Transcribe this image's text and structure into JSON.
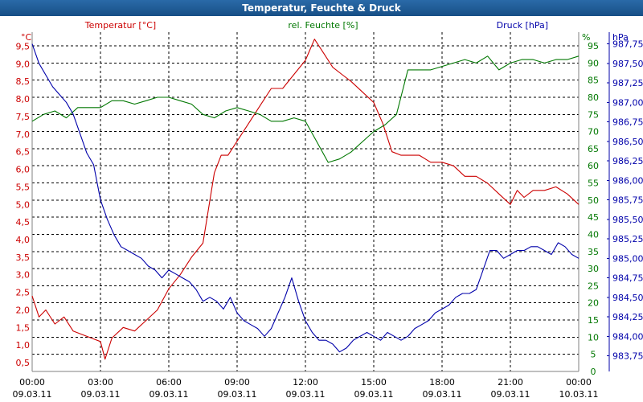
{
  "chart_data": {
    "type": "line",
    "title": "Temperatur, Feuchte & Druck",
    "colors": {
      "temperature": "#cc0000",
      "humidity": "#007700",
      "pressure": "#0000aa",
      "axis": "#000000",
      "grid": "#000000",
      "title_bar": "#1f5e9e"
    },
    "x_ticks": [
      {
        "time": "00:00",
        "date": "09.03.11"
      },
      {
        "time": "03:00",
        "date": "09.03.11"
      },
      {
        "time": "06:00",
        "date": "09.03.11"
      },
      {
        "time": "09:00",
        "date": "09.03.11"
      },
      {
        "time": "12:00",
        "date": "09.03.11"
      },
      {
        "time": "15:00",
        "date": "09.03.11"
      },
      {
        "time": "18:00",
        "date": "09.03.11"
      },
      {
        "time": "21:00",
        "date": "09.03.11"
      },
      {
        "time": "00:00",
        "date": "10.03.11"
      }
    ],
    "xlim": [
      0,
      24
    ],
    "axes": {
      "temperature": {
        "label": "Temperatur [°C]",
        "unit": "°C",
        "ylim": [
          0.25,
          9.9
        ],
        "ticks": [
          "0,5",
          "1,0",
          "1,5",
          "2,0",
          "2,5",
          "3,0",
          "3,5",
          "4,0",
          "4,5",
          "5,0",
          "5,5",
          "6,0",
          "6,5",
          "7,0",
          "7,5",
          "8,0",
          "8,5",
          "9,0",
          "9,5"
        ],
        "tick_values": [
          0.5,
          1.0,
          1.5,
          2.0,
          2.5,
          3.0,
          3.5,
          4.0,
          4.5,
          5.0,
          5.5,
          6.0,
          6.5,
          7.0,
          7.5,
          8.0,
          8.5,
          9.0,
          9.5
        ]
      },
      "humidity": {
        "label": "rel. Feuchte [%]",
        "unit": "%",
        "ylim": [
          0,
          99
        ],
        "ticks": [
          "0",
          "5",
          "10",
          "15",
          "20",
          "25",
          "30",
          "35",
          "40",
          "45",
          "50",
          "55",
          "60",
          "65",
          "70",
          "75",
          "80",
          "85",
          "90",
          "95"
        ],
        "tick_values": [
          0,
          5,
          10,
          15,
          20,
          25,
          30,
          35,
          40,
          45,
          50,
          55,
          60,
          65,
          70,
          75,
          80,
          85,
          90,
          95
        ]
      },
      "pressure": {
        "label": "Druck [hPa]",
        "unit": "hPa",
        "ylim": [
          983.55,
          987.9
        ],
        "ticks": [
          "983,75",
          "984,00",
          "984,25",
          "984,50",
          "984,75",
          "985,00",
          "985,25",
          "985,50",
          "985,75",
          "986,00",
          "986,25",
          "986,50",
          "986,75",
          "987,00",
          "987,25",
          "987,50",
          "987,75"
        ],
        "tick_values": [
          983.75,
          984.0,
          984.25,
          984.5,
          984.75,
          985.0,
          985.25,
          985.5,
          985.75,
          986.0,
          986.25,
          986.5,
          986.75,
          987.0,
          987.25,
          987.5,
          987.75
        ]
      }
    },
    "series": [
      {
        "name": "Temperatur [°C]",
        "axis": "temperature",
        "color": "#cc0000",
        "x": [
          0,
          0.3,
          0.6,
          1.0,
          1.4,
          1.8,
          2.2,
          2.6,
          3.0,
          3.2,
          3.5,
          4.0,
          4.5,
          5.0,
          5.5,
          6.0,
          6.5,
          7.0,
          7.5,
          8.0,
          8.3,
          8.6,
          9.0,
          9.5,
          10.0,
          10.5,
          11.0,
          11.5,
          12.0,
          12.4,
          12.8,
          13.2,
          13.6,
          14.0,
          14.5,
          15.0,
          15.4,
          15.8,
          16.2,
          16.6,
          17.0,
          17.5,
          18.0,
          18.5,
          19.0,
          19.5,
          20.0,
          20.5,
          21.0,
          21.3,
          21.6,
          22.0,
          22.5,
          23.0,
          23.5,
          24.0
        ],
        "values": [
          2.4,
          1.8,
          2.0,
          1.6,
          1.8,
          1.4,
          1.3,
          1.2,
          1.1,
          0.6,
          1.2,
          1.5,
          1.4,
          1.7,
          2.0,
          2.6,
          3.0,
          3.5,
          3.9,
          5.9,
          6.4,
          6.4,
          6.8,
          7.3,
          7.8,
          8.3,
          8.3,
          8.7,
          9.1,
          9.7,
          9.3,
          8.9,
          8.7,
          8.5,
          8.2,
          7.9,
          7.3,
          6.5,
          6.4,
          6.4,
          6.4,
          6.2,
          6.2,
          6.1,
          5.8,
          5.8,
          5.6,
          5.3,
          5.0,
          5.4,
          5.2,
          5.4,
          5.4,
          5.5,
          5.3,
          5.0
        ]
      },
      {
        "name": "rel. Feuchte [%]",
        "axis": "humidity",
        "color": "#007700",
        "x": [
          0,
          0.5,
          1.0,
          1.5,
          2.0,
          2.5,
          3.0,
          3.5,
          4.0,
          4.5,
          5.0,
          5.5,
          6.0,
          6.5,
          7.0,
          7.5,
          8.0,
          8.5,
          9.0,
          9.5,
          10.0,
          10.5,
          11.0,
          11.5,
          12.0,
          12.5,
          13.0,
          13.5,
          14.0,
          14.5,
          15.0,
          15.5,
          16.0,
          16.5,
          17.0,
          17.5,
          18.0,
          18.5,
          19.0,
          19.5,
          20.0,
          20.5,
          21.0,
          21.5,
          22.0,
          22.5,
          23.0,
          23.5,
          24.0
        ],
        "values": [
          73,
          75,
          76,
          74,
          77,
          77,
          77,
          79,
          79,
          78,
          79,
          80,
          80,
          79,
          78,
          75,
          74,
          76,
          77,
          76,
          75,
          73,
          73,
          74,
          73,
          67,
          61,
          62,
          64,
          67,
          70,
          72,
          75,
          88,
          88,
          88,
          89,
          90,
          91,
          90,
          92,
          88,
          90,
          91,
          91,
          90,
          91,
          91,
          92
        ]
      },
      {
        "name": "Druck [hPa]",
        "axis": "pressure",
        "color": "#0000aa",
        "x": [
          0,
          0.3,
          0.6,
          0.9,
          1.2,
          1.5,
          1.8,
          2.1,
          2.4,
          2.7,
          3.0,
          3.3,
          3.6,
          3.9,
          4.2,
          4.5,
          4.8,
          5.1,
          5.4,
          5.7,
          6.0,
          6.3,
          6.6,
          6.9,
          7.2,
          7.5,
          7.8,
          8.1,
          8.4,
          8.7,
          9.0,
          9.3,
          9.6,
          9.9,
          10.2,
          10.5,
          10.8,
          11.1,
          11.4,
          11.7,
          12.0,
          12.3,
          12.6,
          12.9,
          13.2,
          13.5,
          13.8,
          14.1,
          14.4,
          14.7,
          15.0,
          15.3,
          15.6,
          15.9,
          16.2,
          16.5,
          16.8,
          17.1,
          17.4,
          17.7,
          18.0,
          18.3,
          18.6,
          18.9,
          19.2,
          19.5,
          19.8,
          20.1,
          20.4,
          20.7,
          21.0,
          21.3,
          21.6,
          21.9,
          22.2,
          22.5,
          22.8,
          23.1,
          23.4,
          23.7,
          24.0
        ],
        "values": [
          987.75,
          987.5,
          987.35,
          987.2,
          987.1,
          987.0,
          986.85,
          986.6,
          986.35,
          986.2,
          985.75,
          985.5,
          985.3,
          985.15,
          985.1,
          985.05,
          985.0,
          984.9,
          984.85,
          984.75,
          984.85,
          984.8,
          984.75,
          984.7,
          984.6,
          984.45,
          984.5,
          984.45,
          984.35,
          984.5,
          984.3,
          984.2,
          984.15,
          984.1,
          984.0,
          984.1,
          984.3,
          984.5,
          984.75,
          984.45,
          984.2,
          984.05,
          983.95,
          983.95,
          983.9,
          983.8,
          983.85,
          983.95,
          984.0,
          984.05,
          984.0,
          983.95,
          984.05,
          984.0,
          983.95,
          984.0,
          984.1,
          984.15,
          984.2,
          984.3,
          984.35,
          984.4,
          984.5,
          984.55,
          984.55,
          984.6,
          984.85,
          985.1,
          985.1,
          985.0,
          985.05,
          985.1,
          985.1,
          985.15,
          985.15,
          985.1,
          985.05,
          985.2,
          985.15,
          985.05,
          985.0
        ]
      }
    ]
  }
}
